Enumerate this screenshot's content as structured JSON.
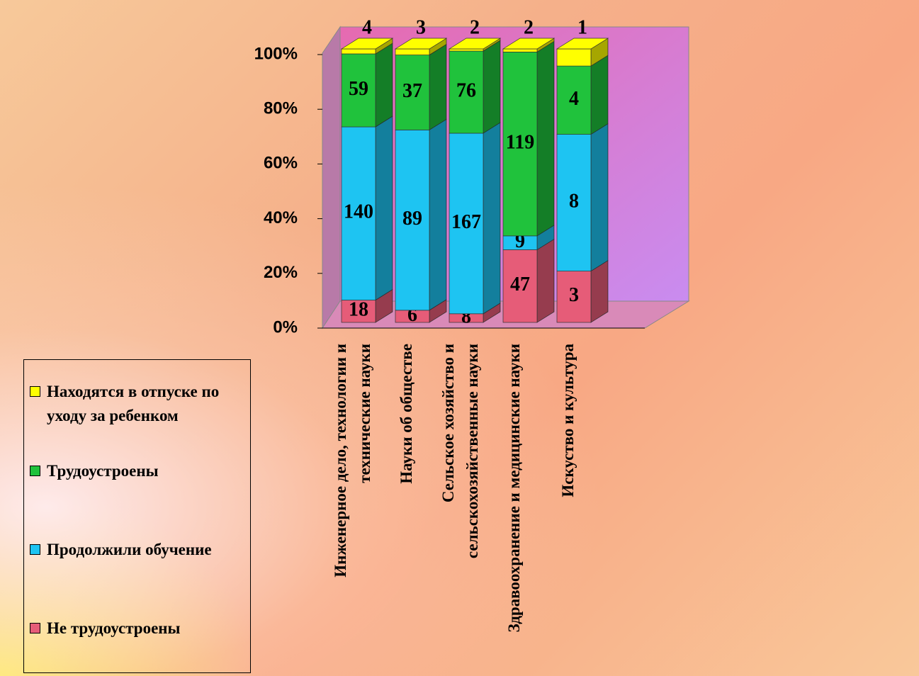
{
  "chart_data": {
    "type": "bar",
    "stacked": "percent",
    "categories": [
      "Инженерное дело, технологии и технические науки",
      "Науки об обществе",
      "Сельское хозяйство и сельскохозяйственные науки",
      "Здравоохранение и медицинские науки",
      "Искуство и культура"
    ],
    "series": [
      {
        "name": "Не трудоустроены",
        "color": "#e65c78",
        "values": [
          18,
          6,
          8,
          47,
          3
        ]
      },
      {
        "name": "Продолжили обучение",
        "color": "#1ec4f2",
        "values": [
          140,
          89,
          167,
          9,
          8
        ]
      },
      {
        "name": "Трудоустроены",
        "color": "#20c23c",
        "values": [
          59,
          37,
          76,
          119,
          4
        ]
      },
      {
        "name": "Находятся в отпуске по уходу за ребенком",
        "color": "#ffff00",
        "values": [
          4,
          3,
          2,
          2,
          1
        ]
      }
    ],
    "ylim": [
      0,
      100
    ],
    "yticks": [
      {
        "value": 0,
        "label": "0%"
      },
      {
        "value": 20,
        "label": "20%"
      },
      {
        "value": 40,
        "label": "40%"
      },
      {
        "value": 60,
        "label": "60%"
      },
      {
        "value": 80,
        "label": "80%"
      },
      {
        "value": 100,
        "label": "100%"
      }
    ],
    "legend": "left"
  }
}
